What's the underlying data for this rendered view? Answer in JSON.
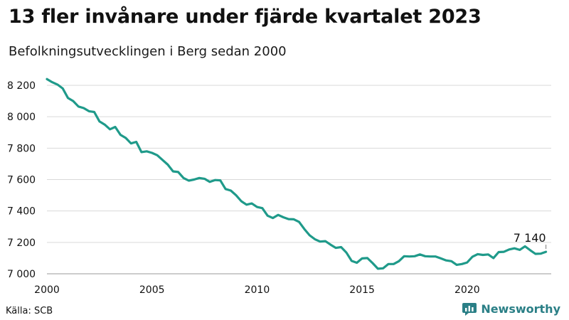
{
  "header": {
    "title": "13 fler invånare under fjärde kvartalet 2023",
    "subtitle": "Befolkningsutvecklingen i Berg sedan 2000"
  },
  "footer": {
    "source": "Källa: SCB",
    "brand": "Newsworthy",
    "brand_icon": "bar-chart-icon",
    "brand_color": "#2a7f86"
  },
  "chart_data": {
    "type": "line",
    "title": "13 fler invånare under fjärde kvartalet 2023",
    "subtitle": "Befolkningsutvecklingen i Berg sedan 2000",
    "xlabel": "",
    "ylabel": "",
    "xlim": [
      2000,
      2024
    ],
    "ylim": [
      7000,
      8200
    ],
    "x_ticks": [
      2000,
      2005,
      2010,
      2015,
      2020
    ],
    "x_tick_labels": [
      "2000",
      "2005",
      "2010",
      "2015",
      "2020"
    ],
    "y_ticks": [
      7000,
      7200,
      7400,
      7600,
      7800,
      8000,
      8200
    ],
    "y_tick_labels": [
      "7 000",
      "7 200",
      "7 400",
      "7 600",
      "7 800",
      "8 000",
      "8 200"
    ],
    "grid": true,
    "line_color": "#1f9a8a",
    "end_label": "7 140",
    "series": [
      {
        "x": [
          2000.0,
          2000.25,
          2000.5,
          2000.75,
          2001.0,
          2001.25,
          2001.5,
          2001.75,
          2002.0,
          2002.25,
          2002.5,
          2002.75,
          2003.0,
          2003.25,
          2003.5,
          2003.75,
          2004.0,
          2004.25,
          2004.5,
          2004.75,
          2005.0,
          2005.25,
          2005.5,
          2005.75,
          2006.0,
          2006.25,
          2006.5,
          2006.75,
          2007.0,
          2007.25,
          2007.5,
          2007.75,
          2008.0,
          2008.25,
          2008.5,
          2008.75,
          2009.0,
          2009.25,
          2009.5,
          2009.75,
          2010.0,
          2010.25,
          2010.5,
          2010.75,
          2011.0,
          2011.25,
          2011.5,
          2011.75,
          2012.0,
          2012.25,
          2012.5,
          2012.75,
          2013.0,
          2013.25,
          2013.5,
          2013.75,
          2014.0,
          2014.25,
          2014.5,
          2014.75,
          2015.0,
          2015.25,
          2015.5,
          2015.75,
          2016.0,
          2016.25,
          2016.5,
          2016.75,
          2017.0,
          2017.25,
          2017.5,
          2017.75,
          2018.0,
          2018.25,
          2018.5,
          2018.75,
          2019.0,
          2019.25,
          2019.5,
          2019.75,
          2020.0,
          2020.25,
          2020.5,
          2020.75,
          2021.0,
          2021.25,
          2021.5,
          2021.75,
          2022.0,
          2022.25,
          2022.5,
          2022.75,
          2023.0,
          2023.25,
          2023.5,
          2023.75
        ],
        "values": [
          8240,
          8220,
          8205,
          8180,
          8120,
          8100,
          8065,
          8055,
          8035,
          8030,
          7970,
          7950,
          7920,
          7935,
          7885,
          7865,
          7830,
          7840,
          7775,
          7780,
          7770,
          7755,
          7725,
          7695,
          7652,
          7648,
          7610,
          7593,
          7600,
          7610,
          7605,
          7585,
          7597,
          7595,
          7540,
          7530,
          7500,
          7462,
          7440,
          7448,
          7425,
          7418,
          7370,
          7355,
          7375,
          7360,
          7348,
          7347,
          7330,
          7285,
          7245,
          7220,
          7205,
          7208,
          7185,
          7165,
          7170,
          7135,
          7082,
          7070,
          7098,
          7100,
          7068,
          7032,
          7035,
          7062,
          7062,
          7080,
          7112,
          7110,
          7112,
          7123,
          7112,
          7110,
          7110,
          7098,
          7085,
          7080,
          7057,
          7062,
          7072,
          7108,
          7125,
          7120,
          7123,
          7100,
          7138,
          7140,
          7155,
          7162,
          7152,
          7175,
          7150,
          7127,
          7128,
          7140
        ]
      }
    ]
  }
}
